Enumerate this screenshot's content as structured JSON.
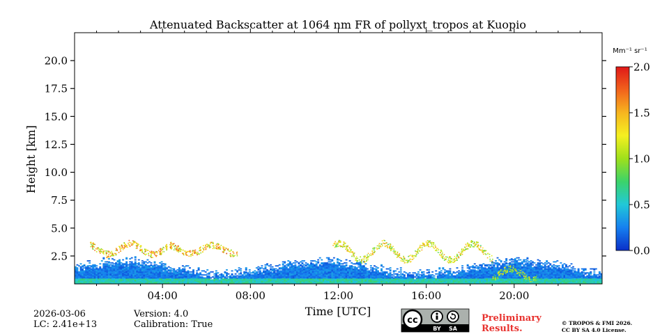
{
  "chart_data": {
    "type": "heatmap",
    "title": "Attenuated Backscatter at 1064 nm FR of pollyxt_tropos at Kuopio",
    "xlabel": "Time [UTC]",
    "ylabel": "Height [km]",
    "xlim": [
      0,
      24
    ],
    "ylim": [
      0,
      22.5
    ],
    "x_ticks": [
      {
        "value": 4,
        "label": "04:00"
      },
      {
        "value": 8,
        "label": "08:00"
      },
      {
        "value": 12,
        "label": "12:00"
      },
      {
        "value": 16,
        "label": "16:00"
      },
      {
        "value": 20,
        "label": "20:00"
      }
    ],
    "y_ticks": [
      {
        "value": 2.5,
        "label": "2.5"
      },
      {
        "value": 5.0,
        "label": "5.0"
      },
      {
        "value": 7.5,
        "label": "7.5"
      },
      {
        "value": 10.0,
        "label": "10.0"
      },
      {
        "value": 12.5,
        "label": "12.5"
      },
      {
        "value": 15.0,
        "label": "15.0"
      },
      {
        "value": 17.5,
        "label": "17.5"
      },
      {
        "value": 20.0,
        "label": "20.0"
      }
    ],
    "colorbar": {
      "label": "Mm⁻¹ sr⁻¹",
      "range": [
        0.0,
        2.0
      ],
      "ticks": [
        {
          "value": 0.0,
          "label": "0.0"
        },
        {
          "value": 0.5,
          "label": "0.5"
        },
        {
          "value": 1.0,
          "label": "1.0"
        },
        {
          "value": 1.5,
          "label": "1.5"
        },
        {
          "value": 2.0,
          "label": "2.0"
        }
      ],
      "colormap": "jet-like",
      "stops": [
        "#0a2fc8",
        "#1680f0",
        "#21c8d8",
        "#3bd36a",
        "#9ee01c",
        "#f5f020",
        "#f7b51f",
        "#f2621c",
        "#e01818"
      ]
    },
    "features": [
      {
        "name": "boundary layer",
        "time_range": [
          0,
          24
        ],
        "top_km": 1.6,
        "typical_value": 0.3
      },
      {
        "name": "aerosol/cloud layer",
        "time_range": [
          0.7,
          4.2
        ],
        "height_range_km": [
          2.4,
          3.8
        ],
        "typical_value": 1.6
      },
      {
        "name": "aerosol/cloud layer",
        "time_range": [
          4.3,
          7.4
        ],
        "height_range_km": [
          2.5,
          3.6
        ],
        "typical_value": 1.6
      },
      {
        "name": "aerosol/cloud layer",
        "time_range": [
          11.7,
          19.0
        ],
        "height_range_km": [
          1.8,
          3.9
        ],
        "typical_value": 1.4
      },
      {
        "name": "low cloud",
        "time_range": [
          19.0,
          21.0
        ],
        "height_range_km": [
          0.2,
          1.5
        ],
        "typical_value": 1.2
      }
    ]
  },
  "footer": {
    "date": "2026-03-06",
    "lc": "LC: 2.41e+13",
    "version": "Version: 4.0",
    "calibration": "Calibration: True",
    "license_badge": {
      "cc": "cc",
      "by": "BY",
      "sa": "SA"
    },
    "preliminary_line1": "Preliminary",
    "preliminary_line2": "Results.",
    "copyright_line1": "© TROPOS & FMI 2026.",
    "copyright_line2": "CC BY SA 4.0 License."
  }
}
